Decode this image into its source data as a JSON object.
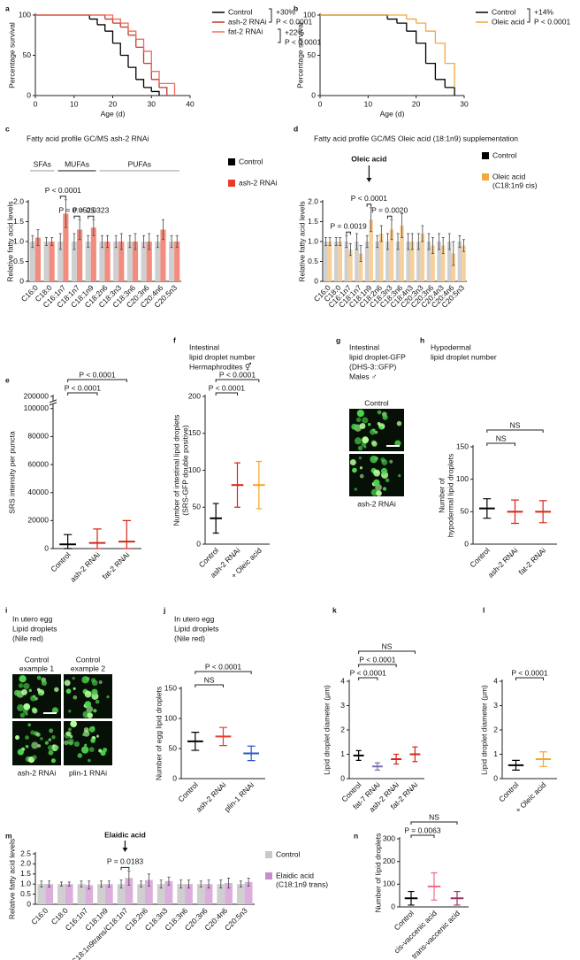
{
  "chart_data": [
    {
      "panel": "a",
      "type": "survival",
      "ylabel": "Percentage survival",
      "xlabel": "Age (d)",
      "xlim": [
        0,
        40
      ],
      "xticks": [
        0,
        10,
        20,
        30,
        40
      ],
      "ylim": [
        0,
        100
      ],
      "yticks": [
        0,
        50,
        100
      ],
      "series": [
        {
          "name": "Control",
          "color": "#000000",
          "x": [
            0,
            12,
            14,
            16,
            18,
            20,
            22,
            24,
            26,
            28,
            30,
            32
          ],
          "values": [
            100,
            100,
            95,
            88,
            80,
            65,
            50,
            35,
            20,
            10,
            5,
            0
          ]
        },
        {
          "name": "ash-2 RNAi",
          "color": "#c0392b",
          "x": [
            0,
            16,
            18,
            20,
            22,
            24,
            26,
            28,
            30,
            32,
            34
          ],
          "values": [
            100,
            100,
            95,
            90,
            85,
            75,
            60,
            40,
            20,
            10,
            0
          ]
        },
        {
          "name": "fat-2 RNAi",
          "color": "#f06a5a",
          "x": [
            0,
            18,
            20,
            22,
            24,
            26,
            28,
            30,
            32,
            36
          ],
          "values": [
            100,
            100,
            95,
            90,
            80,
            70,
            55,
            30,
            15,
            0
          ]
        }
      ],
      "annotations": [
        "+30%",
        "P < 0.0001",
        "+22%",
        "P < 0.0001"
      ]
    },
    {
      "panel": "b",
      "type": "survival",
      "ylabel": "Percentage survival",
      "xlabel": "Age (d)",
      "xlim": [
        0,
        30
      ],
      "xticks": [
        0,
        10,
        20,
        30
      ],
      "ylim": [
        0,
        100
      ],
      "yticks": [
        0,
        50,
        100
      ],
      "series": [
        {
          "name": "Control",
          "color": "#000000",
          "x": [
            0,
            12,
            14,
            16,
            18,
            20,
            22,
            24,
            26,
            28
          ],
          "values": [
            100,
            100,
            95,
            90,
            80,
            65,
            40,
            20,
            10,
            0
          ]
        },
        {
          "name": "Oleic acid",
          "color": "#f2a93b",
          "x": [
            0,
            16,
            18,
            20,
            22,
            24,
            26,
            28
          ],
          "values": [
            100,
            100,
            95,
            90,
            80,
            65,
            40,
            10
          ]
        }
      ],
      "annotations": [
        "+14%",
        "P < 0.0001"
      ]
    },
    {
      "panel": "c",
      "type": "bar",
      "title": "Fatty acid profile GC/MS ash-2 RNAi",
      "ylabel": "Relative fatty acid levels",
      "ylim": [
        0,
        2
      ],
      "yticks": [
        0,
        0.5,
        {
          "value": 1,
          "label": "1.0"
        },
        1.5,
        {
          "value": 2,
          "label": "2.0"
        }
      ],
      "groups": [
        "SFAs",
        "MUFAs",
        "PUFAs"
      ],
      "categories": [
        "C16:0",
        "C18:0",
        "C16:1n7",
        "C18:1n7",
        "C18:1n9",
        "C18:2n6",
        "C18:3n3",
        "C18:3n6",
        "C20:3n6",
        "C20:4n6",
        "C20:5n3"
      ],
      "series": [
        {
          "name": "Control",
          "color": "#000000",
          "bar_color": "#cfcfcf",
          "values": [
            1,
            1,
            1,
            1,
            1,
            1,
            1,
            1,
            1,
            1,
            1
          ],
          "errors": [
            0.15,
            0.1,
            0.2,
            0.2,
            0.15,
            0.15,
            0.15,
            0.15,
            0.15,
            0.15,
            0.15
          ]
        },
        {
          "name": "ash-2 RNAi",
          "color": "#e8392a",
          "bar_color": "#f28c7e",
          "values": [
            1.1,
            1.0,
            1.7,
            1.3,
            1.35,
            1.0,
            1.0,
            1.0,
            1.0,
            1.3,
            1.0
          ],
          "errors": [
            0.2,
            0.1,
            0.35,
            0.25,
            0.2,
            0.15,
            0.2,
            0.2,
            0.2,
            0.25,
            0.15
          ]
        }
      ],
      "comparisons": [
        {
          "label": "P < 0.0001",
          "category": "C16:1n7"
        },
        {
          "label": "P = 0.0525",
          "category": "C18:1n7"
        },
        {
          "label": "P = 0.0323",
          "category": "C18:1n9"
        }
      ]
    },
    {
      "panel": "d",
      "type": "bar",
      "title": "Fatty acid profile GC/MS Oleic acid (18:1n9) supplementation",
      "ylabel": "Relative fatty acid levels",
      "ylim": [
        0,
        2
      ],
      "yticks": [
        0,
        0.5,
        {
          "value": 1,
          "label": "1.0"
        },
        1.5,
        {
          "value": 2,
          "label": "2.0"
        }
      ],
      "categories": [
        "C16:0",
        "C18:0",
        "C16:1n7",
        "C18:1n7",
        "C18:1n9",
        "C18:2n6",
        "C18:3n3",
        "C18:3n6",
        "C18:4n3",
        "C20:3n3",
        "C20:3n6",
        "C20:4n3",
        "C20:4n6",
        "C20:5n3"
      ],
      "series": [
        {
          "name": "Control",
          "color": "#000000",
          "bar_color": "#cfcfcf",
          "values": [
            1,
            1,
            1,
            1,
            1,
            1,
            1,
            1,
            1,
            1,
            1,
            1,
            1,
            1
          ],
          "errors": [
            0.1,
            0.1,
            0.15,
            0.2,
            0.15,
            0.15,
            0.2,
            0.2,
            0.2,
            0.2,
            0.2,
            0.2,
            0.2,
            0.15
          ]
        },
        {
          "name": [
            "Oleic acid",
            "(C18:1n9 cis)"
          ],
          "color": "#f2a93b",
          "bar_color": "#f8cf98",
          "values": [
            1.0,
            1.0,
            0.8,
            0.7,
            1.55,
            1.2,
            1.3,
            1.4,
            1.0,
            1.2,
            0.9,
            0.9,
            0.7,
            0.9
          ],
          "errors": [
            0.1,
            0.1,
            0.15,
            0.2,
            0.3,
            0.2,
            0.25,
            0.3,
            0.2,
            0.2,
            0.2,
            0.2,
            0.3,
            0.15
          ]
        }
      ],
      "annotations": [
        {
          "label": "Oleic acid",
          "category": "C18:1n9"
        }
      ],
      "comparisons": [
        {
          "label": "P = 0.0019",
          "category": "C16:1n7"
        },
        {
          "label": "P < 0.0001",
          "category": "C18:1n9"
        },
        {
          "label": "P = 0.0020",
          "category": "C18:3n3"
        }
      ]
    },
    {
      "panel": "e",
      "type": "dot",
      "ylabel": "SRS intensity per puncta",
      "broken_axis": true,
      "ylim": [
        0,
        200000
      ],
      "yticks": [
        0,
        20000,
        40000,
        60000,
        80000,
        100000,
        200000
      ],
      "categories": [
        "Control",
        "ash-2 RNAi",
        "fat-2 RNAi"
      ],
      "values": [
        3000,
        4000,
        5000
      ],
      "errors": [
        7000,
        10000,
        15000
      ],
      "colors": [
        "#000000",
        "#d62718",
        "#d62718"
      ],
      "comparisons": [
        {
          "label": "P < 0.0001",
          "between": [
            "Control",
            "ash-2 RNAi"
          ]
        },
        {
          "label": "P < 0.0001",
          "between": [
            "Control",
            "fat-2 RNAi"
          ]
        }
      ]
    },
    {
      "panel": "f",
      "type": "dot",
      "title": [
        "Intestinal",
        "lipid droplet number",
        "Hermaphrodites ⚥"
      ],
      "ylabel": [
        "Number of intestinal lipid droplets",
        "(SRS-GFP double positive)"
      ],
      "ylim": [
        0,
        200
      ],
      "yticks": [
        0,
        50,
        100,
        150,
        200
      ],
      "categories": [
        "Control",
        "ash-2 RNAi",
        "+ Oleic acid"
      ],
      "values": [
        35,
        80,
        80
      ],
      "errors": [
        20,
        30,
        32
      ],
      "colors": [
        "#000000",
        "#d62718",
        "#f5a623"
      ],
      "comparisons": [
        {
          "label": "P < 0.0001",
          "between": [
            "Control",
            "ash-2 RNAi"
          ]
        },
        {
          "label": "P < 0.0001",
          "between": [
            "Control",
            "+ Oleic acid"
          ]
        }
      ]
    },
    {
      "panel": "g",
      "type": "image",
      "title": [
        "Intestinal",
        "lipid droplet-GFP",
        "(DHS-3::GFP)",
        "Males ♂"
      ],
      "labels": [
        [
          "Control"
        ],
        [
          "ash-2 RNAi"
        ]
      ]
    },
    {
      "panel": "h",
      "type": "dot",
      "title": [
        "Hypodermal",
        "lipid droplet number"
      ],
      "ylabel": [
        "Number of",
        "hypodermal lipid droplets"
      ],
      "ylim": [
        0,
        150
      ],
      "yticks": [
        0,
        50,
        100,
        150
      ],
      "categories": [
        "Control",
        "ash-2 RNAi",
        "fat-2 RNAi"
      ],
      "values": [
        55,
        50,
        50
      ],
      "errors": [
        15,
        18,
        17
      ],
      "colors": [
        "#000000",
        "#d62718",
        "#d62718"
      ],
      "comparisons": [
        {
          "label": "NS",
          "between": [
            "Control",
            "ash-2 RNAi"
          ]
        },
        {
          "label": "NS",
          "between": [
            "Control",
            "fat-2 RNAi"
          ]
        }
      ]
    },
    {
      "panel": "i",
      "type": "image",
      "title": [
        "In utero egg",
        "Lipid droplets",
        "(Nile red)"
      ],
      "labels": [
        [
          "Control",
          "example 1"
        ],
        [
          "Control",
          "example 2"
        ],
        [
          "ash-2 RNAi"
        ],
        [
          "plin-1 RNAi"
        ]
      ]
    },
    {
      "panel": "j",
      "type": "dot",
      "title": [
        "In utero egg",
        "Lipid droplets",
        "(Nile red)"
      ],
      "ylabel": "Number of egg lipid droplets",
      "ylim": [
        0,
        150
      ],
      "yticks": [
        0,
        50,
        100,
        150
      ],
      "categories": [
        "Control",
        "ash-2 RNAi",
        "plin-1 RNAi"
      ],
      "values": [
        62,
        70,
        42
      ],
      "errors": [
        15,
        15,
        12
      ],
      "colors": [
        "#000000",
        "#e8392a",
        "#2d56c8"
      ],
      "comparisons": [
        {
          "label": "NS",
          "between": [
            "Control",
            "ash-2 RNAi"
          ]
        },
        {
          "label": "P < 0.0001",
          "between": [
            "Control",
            "plin-1 RNAi"
          ]
        }
      ]
    },
    {
      "panel": "k",
      "type": "dot",
      "ylabel": "Lipid droplet diameter (μm)",
      "ylim": [
        0,
        4
      ],
      "yticks": [
        0,
        1,
        2,
        3,
        4
      ],
      "categories": [
        "Control",
        "fat-7 RNAi",
        "ash-2 RNAi",
        "fat-2 RNAi"
      ],
      "values": [
        0.95,
        0.5,
        0.8,
        1.0
      ],
      "errors": [
        0.2,
        0.15,
        0.2,
        0.3
      ],
      "colors": [
        "#000000",
        "#7b6fb0",
        "#d62718",
        "#d62718"
      ],
      "comparisons": [
        {
          "label": "P < 0.0001",
          "between": [
            "Control",
            "fat-7 RNAi"
          ]
        },
        {
          "label": "P < 0.0001",
          "between": [
            "Control",
            "ash-2 RNAi"
          ]
        },
        {
          "label": "NS",
          "between": [
            "Control",
            "fat-2 RNAi"
          ]
        }
      ]
    },
    {
      "panel": "l",
      "type": "dot",
      "ylabel": "Lipid droplet diameter (μm)",
      "ylim": [
        0,
        4
      ],
      "yticks": [
        0,
        1,
        2,
        3,
        4
      ],
      "categories": [
        "Control",
        "+ Oleic acid"
      ],
      "values": [
        0.55,
        0.8
      ],
      "errors": [
        0.2,
        0.3
      ],
      "colors": [
        "#000000",
        "#f5a623"
      ],
      "comparisons": [
        {
          "label": "P < 0.0001",
          "between": [
            "Control",
            "+ Oleic acid"
          ]
        }
      ]
    },
    {
      "panel": "m",
      "type": "bar",
      "ylabel": "Relative fatty acid levels",
      "ylim": [
        0,
        2.5
      ],
      "yticks": [
        0,
        0.5,
        {
          "value": 1,
          "label": "1.0"
        },
        1.5,
        {
          "value": 2,
          "label": "2.0"
        },
        2.5
      ],
      "categories": [
        "C16:0",
        "C18:0",
        "C16:1n7",
        "C18:1n9",
        "C18:1n9trans/C18:1n7",
        "C18:2n6",
        "C18:3n3",
        "C18:3n6",
        "C20:3n6",
        "C20:4n6",
        "C20:5n3"
      ],
      "series": [
        {
          "name": "Control",
          "color": "#c8c8c8",
          "bar_color": "#cfcfcf",
          "values": [
            1,
            1,
            1,
            1,
            1,
            1,
            1,
            1,
            1,
            1,
            1
          ],
          "errors": [
            0.15,
            0.1,
            0.15,
            0.15,
            0.2,
            0.15,
            0.2,
            0.2,
            0.15,
            0.2,
            0.15
          ]
        },
        {
          "name": [
            "Elaidic acid",
            "(C18:1n9 trans)"
          ],
          "color": "#c98bc9",
          "bar_color": "#dcaedc",
          "values": [
            1.0,
            1.0,
            0.95,
            1.0,
            1.3,
            1.2,
            1.15,
            1.0,
            1.0,
            1.05,
            1.1
          ],
          "errors": [
            0.15,
            0.1,
            0.2,
            0.15,
            0.35,
            0.3,
            0.2,
            0.2,
            0.2,
            0.25,
            0.2
          ]
        }
      ],
      "annotations": [
        {
          "label": "Elaidic acid",
          "category": "C18:1n9trans/C18:1n7"
        }
      ],
      "comparisons": [
        {
          "label": "P = 0.0183",
          "category": "C18:1n9trans/C18:1n7"
        }
      ]
    },
    {
      "panel": "n",
      "type": "dot",
      "ylabel": "Number of lipid droplets",
      "ylim": [
        0,
        300
      ],
      "yticks": [
        0,
        100,
        200,
        300
      ],
      "categories": [
        "Control",
        "cis-vaccenic acid",
        "trans-vaccenic acid"
      ],
      "values": [
        38,
        90,
        38
      ],
      "errors": [
        30,
        60,
        30
      ],
      "colors": [
        "#000000",
        "#f06a8a",
        "#a03060"
      ],
      "comparisons": [
        {
          "label": "P = 0.0063",
          "between": [
            "Control",
            "cis-vaccenic acid"
          ]
        },
        {
          "label": "NS",
          "between": [
            "Control",
            "trans-vaccenic acid"
          ]
        }
      ]
    }
  ]
}
